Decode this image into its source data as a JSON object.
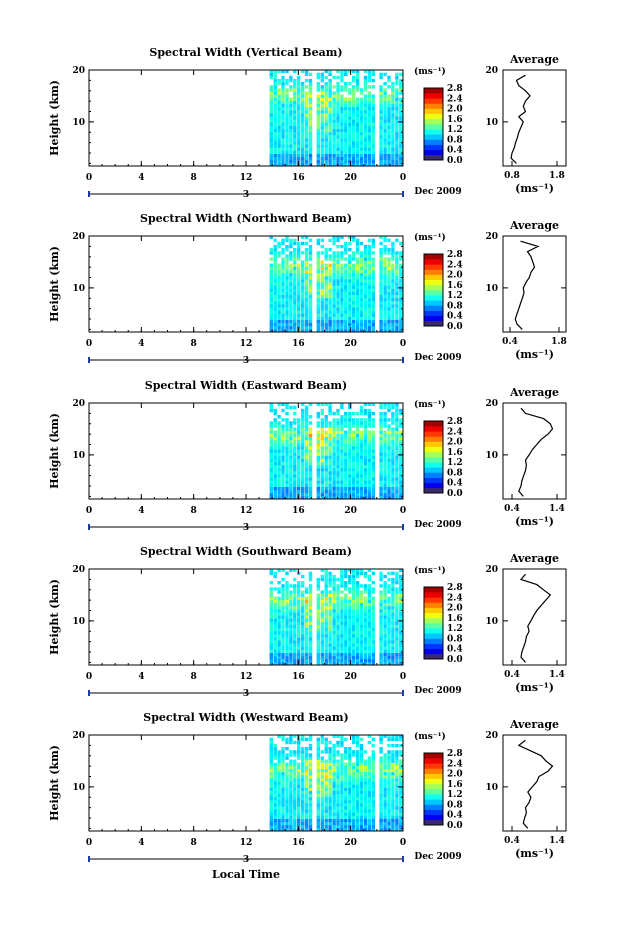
{
  "figure": {
    "xlabel": "Local Time",
    "date_label": "Dec 2009",
    "day_label": "3",
    "colorbar_unit": "(ms⁻¹)",
    "colorbar_ticks": [
      "0.0",
      "0.4",
      "0.8",
      "1.2",
      "1.6",
      "2.0",
      "2.4",
      "2.8"
    ]
  },
  "chart_data": [
    {
      "type": "heatmap",
      "title": "Spectral Width (Vertical Beam)",
      "ylabel": "Height (km)",
      "xticks": [
        "0",
        "4",
        "8",
        "12",
        "16",
        "20",
        "0"
      ],
      "yticks": [
        "10",
        "20"
      ],
      "xlim": [
        0,
        24
      ],
      "ylim": [
        1.5,
        20
      ],
      "data_coverage": [
        [
          13.8,
          17.1
        ],
        [
          17.4,
          21.8
        ],
        [
          22.2,
          24
        ]
      ],
      "color_scale": {
        "min": 0.0,
        "max": 2.8,
        "unit": "ms^-1"
      },
      "average": {
        "title": "Average",
        "xlabel": "(ms⁻¹)",
        "xticks": [
          "0.8",
          "1.8"
        ],
        "xlim": [
          0.6,
          2.0
        ],
        "heights": [
          2,
          3,
          4,
          5,
          6,
          7,
          8,
          9,
          10,
          11,
          12,
          13,
          14,
          15,
          16,
          17,
          18,
          19
        ],
        "values": [
          0.9,
          0.78,
          0.8,
          0.85,
          0.88,
          0.92,
          0.95,
          1.0,
          1.05,
          0.95,
          1.1,
          1.05,
          1.1,
          1.2,
          1.1,
          0.95,
          0.9,
          1.1
        ]
      }
    },
    {
      "type": "heatmap",
      "title": "Spectral Width (Northward Beam)",
      "ylabel": "Height (km)",
      "xticks": [
        "0",
        "4",
        "8",
        "12",
        "16",
        "20",
        "0"
      ],
      "yticks": [
        "10",
        "20"
      ],
      "xlim": [
        0,
        24
      ],
      "ylim": [
        1.5,
        20
      ],
      "data_coverage": [
        [
          13.8,
          17.1
        ],
        [
          17.4,
          21.8
        ],
        [
          22.2,
          24
        ]
      ],
      "color_scale": {
        "min": 0.0,
        "max": 2.8,
        "unit": "ms^-1"
      },
      "average": {
        "title": "Average",
        "xlabel": "(ms⁻¹)",
        "xticks": [
          "0.4",
          "1.8"
        ],
        "xlim": [
          0.2,
          2.0
        ],
        "heights": [
          2,
          3,
          4,
          5,
          6,
          7,
          8,
          9,
          10,
          11,
          12,
          13,
          14,
          15,
          16,
          17,
          18,
          19
        ],
        "values": [
          0.75,
          0.6,
          0.55,
          0.6,
          0.65,
          0.7,
          0.75,
          0.8,
          0.78,
          0.85,
          0.95,
          1.0,
          1.1,
          1.05,
          1.0,
          0.9,
          1.2,
          0.7
        ]
      }
    },
    {
      "type": "heatmap",
      "title": "Spectral Width (Eastward Beam)",
      "ylabel": "Height (km)",
      "xticks": [
        "0",
        "4",
        "8",
        "12",
        "16",
        "20",
        "0"
      ],
      "yticks": [
        "10",
        "20"
      ],
      "xlim": [
        0,
        24
      ],
      "ylim": [
        1.5,
        20
      ],
      "data_coverage": [
        [
          13.8,
          17.1
        ],
        [
          17.4,
          21.8
        ],
        [
          22.2,
          24
        ]
      ],
      "color_scale": {
        "min": 0.0,
        "max": 2.8,
        "unit": "ms^-1"
      },
      "average": {
        "title": "Average",
        "xlabel": "(ms⁻¹)",
        "xticks": [
          "0.4",
          "1.4"
        ],
        "xlim": [
          0.2,
          1.6
        ],
        "heights": [
          2,
          3,
          4,
          5,
          6,
          7,
          8,
          9,
          10,
          11,
          12,
          13,
          14,
          15,
          16,
          17,
          18,
          19
        ],
        "values": [
          0.65,
          0.55,
          0.6,
          0.62,
          0.66,
          0.7,
          0.72,
          0.7,
          0.78,
          0.85,
          0.95,
          1.05,
          1.2,
          1.3,
          1.25,
          1.1,
          0.7,
          0.6
        ]
      }
    },
    {
      "type": "heatmap",
      "title": "Spectral Width (Southward Beam)",
      "ylabel": "Height (km)",
      "xticks": [
        "0",
        "4",
        "8",
        "12",
        "16",
        "20",
        "0"
      ],
      "yticks": [
        "10",
        "20"
      ],
      "xlim": [
        0,
        24
      ],
      "ylim": [
        1.5,
        20
      ],
      "data_coverage": [
        [
          13.8,
          17.1
        ],
        [
          17.4,
          21.8
        ],
        [
          22.2,
          24
        ]
      ],
      "color_scale": {
        "min": 0.0,
        "max": 2.8,
        "unit": "ms^-1"
      },
      "average": {
        "title": "Average",
        "xlabel": "(ms⁻¹)",
        "xticks": [
          "0.4",
          "1.4"
        ],
        "xlim": [
          0.2,
          1.6
        ],
        "heights": [
          2,
          3,
          4,
          5,
          6,
          7,
          8,
          9,
          10,
          11,
          12,
          13,
          14,
          15,
          16,
          17,
          18,
          19
        ],
        "values": [
          0.7,
          0.6,
          0.62,
          0.66,
          0.7,
          0.72,
          0.78,
          0.75,
          0.82,
          0.88,
          0.95,
          1.05,
          1.15,
          1.25,
          1.1,
          0.95,
          0.6,
          0.7
        ]
      }
    },
    {
      "type": "heatmap",
      "title": "Spectral Width (Westward Beam)",
      "ylabel": "Height (km)",
      "xticks": [
        "0",
        "4",
        "8",
        "12",
        "16",
        "20",
        "0"
      ],
      "yticks": [
        "10",
        "20"
      ],
      "xlim": [
        0,
        24
      ],
      "ylim": [
        1.5,
        20
      ],
      "data_coverage": [
        [
          13.8,
          17.1
        ],
        [
          17.4,
          21.8
        ],
        [
          22.2,
          24
        ]
      ],
      "color_scale": {
        "min": 0.0,
        "max": 2.8,
        "unit": "ms^-1"
      },
      "average": {
        "title": "Average",
        "xlabel": "(ms⁻¹)",
        "xticks": [
          "0.4",
          "1.4"
        ],
        "xlim": [
          0.2,
          1.6
        ],
        "heights": [
          2,
          3,
          4,
          5,
          6,
          7,
          8,
          9,
          10,
          11,
          12,
          13,
          14,
          15,
          16,
          17,
          18,
          19
        ],
        "values": [
          0.75,
          0.65,
          0.68,
          0.72,
          0.7,
          0.78,
          0.82,
          0.75,
          0.85,
          0.95,
          1.0,
          1.2,
          1.3,
          1.15,
          1.05,
          0.8,
          0.55,
          0.7
        ]
      }
    }
  ]
}
